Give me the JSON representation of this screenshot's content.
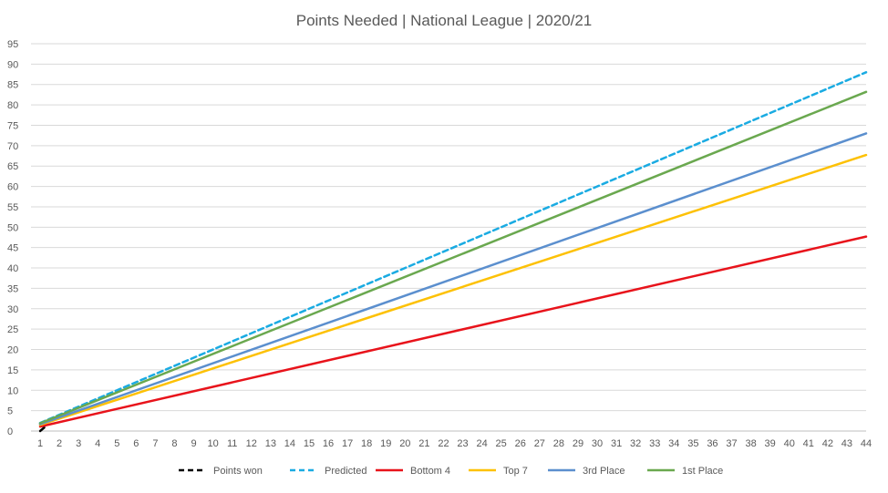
{
  "chart_data": {
    "type": "line",
    "title": "Points Needed  | National League | 2020/21",
    "xlabel": "",
    "ylabel": "",
    "x": [
      1,
      2,
      3,
      4,
      5,
      6,
      7,
      8,
      9,
      10,
      11,
      12,
      13,
      14,
      15,
      16,
      17,
      18,
      19,
      20,
      21,
      22,
      23,
      24,
      25,
      26,
      27,
      28,
      29,
      30,
      31,
      32,
      33,
      34,
      35,
      36,
      37,
      38,
      39,
      40,
      41,
      42,
      43,
      44
    ],
    "xlim": [
      1,
      44
    ],
    "ylim": [
      0,
      95
    ],
    "yticks": [
      0,
      5,
      10,
      15,
      20,
      25,
      30,
      35,
      40,
      45,
      50,
      55,
      60,
      65,
      70,
      75,
      80,
      85,
      90,
      95
    ],
    "grid": true,
    "legend": "bottom",
    "series": [
      {
        "name": "Points won",
        "color": "#000000",
        "dash": true,
        "x": [
          1,
          1.25
        ],
        "values": [
          0,
          1
        ]
      },
      {
        "name": "Predicted",
        "color": "#1aabe2",
        "dash": true,
        "x": [
          1,
          44
        ],
        "values": [
          2,
          88
        ]
      },
      {
        "name": "Bottom 4",
        "color": "#e8131b",
        "dash": false,
        "x": [
          1,
          44
        ],
        "values": [
          1.1,
          47.7
        ]
      },
      {
        "name": "Top 7",
        "color": "#fdc105",
        "dash": false,
        "x": [
          1,
          44
        ],
        "values": [
          1.5,
          67.7
        ]
      },
      {
        "name": "3rd Place",
        "color": "#5b8fce",
        "dash": false,
        "x": [
          1,
          44
        ],
        "values": [
          1.7,
          73
        ]
      },
      {
        "name": "1st Place",
        "color": "#6aa84f",
        "dash": false,
        "x": [
          1,
          44
        ],
        "values": [
          1.9,
          83.2
        ]
      }
    ]
  }
}
